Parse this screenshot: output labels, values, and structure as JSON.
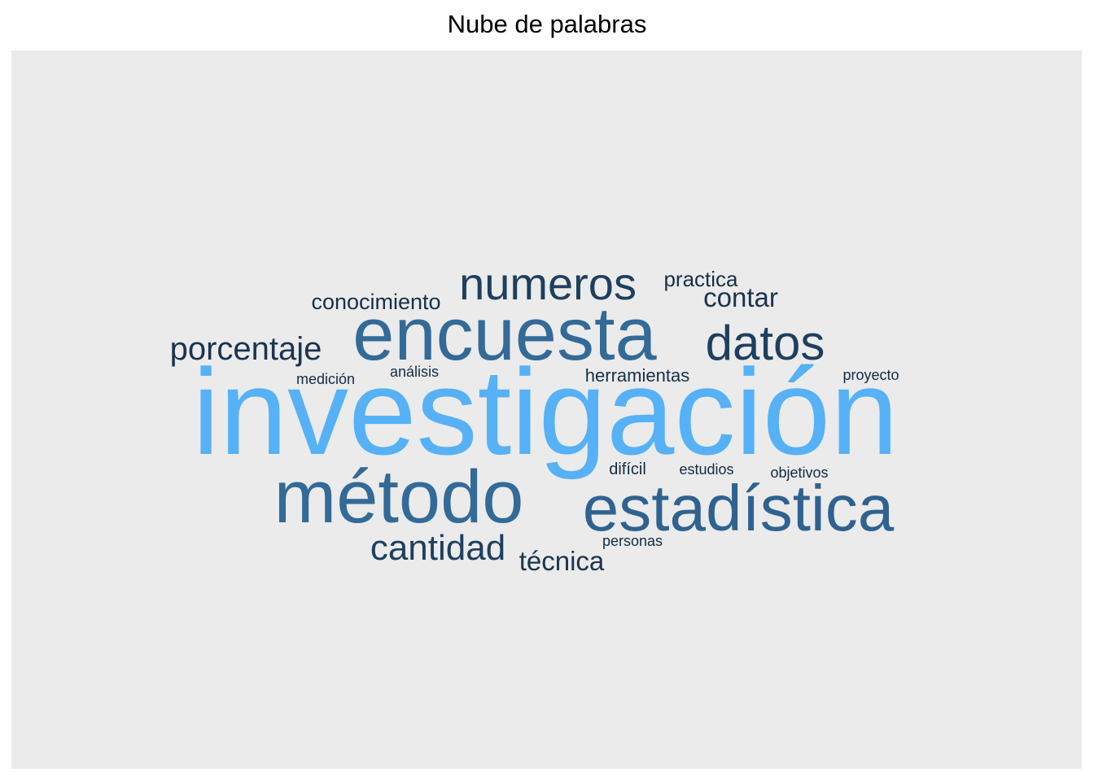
{
  "chart_data": {
    "type": "wordcloud",
    "title": "Nube de palabras",
    "words": [
      {
        "word": "investigación",
        "freq": 10,
        "color": "#56b1f7"
      },
      {
        "word": "encuesta",
        "freq": 6,
        "color": "#336a98"
      },
      {
        "word": "método",
        "freq": 6,
        "color": "#336a98"
      },
      {
        "word": "estadística",
        "freq": 5,
        "color": "#2f6290"
      },
      {
        "word": "numeros",
        "freq": 3,
        "color": "#1e3f5f"
      },
      {
        "word": "datos",
        "freq": 3,
        "color": "#1e3f5f"
      },
      {
        "word": "cantidad",
        "freq": 3,
        "color": "#1e3f5f"
      },
      {
        "word": "porcentaje",
        "freq": 2,
        "color": "#1a3450"
      },
      {
        "word": "contar",
        "freq": 2,
        "color": "#1a3450"
      },
      {
        "word": "técnica",
        "freq": 2,
        "color": "#1a3450"
      },
      {
        "word": "conocimiento",
        "freq": 1,
        "color": "#163049"
      },
      {
        "word": "practica",
        "freq": 1,
        "color": "#163049"
      },
      {
        "word": "herramientas",
        "freq": 1,
        "color": "#163049"
      },
      {
        "word": "medición",
        "freq": 1,
        "color": "#132b43"
      },
      {
        "word": "análisis",
        "freq": 1,
        "color": "#132b43"
      },
      {
        "word": "proyecto",
        "freq": 1,
        "color": "#132b43"
      },
      {
        "word": "difícil",
        "freq": 1,
        "color": "#132b43"
      },
      {
        "word": "estudios",
        "freq": 1,
        "color": "#132b43"
      },
      {
        "word": "objetivos",
        "freq": 1,
        "color": "#132b43"
      },
      {
        "word": "personas",
        "freq": 1,
        "color": "#132b43"
      }
    ]
  }
}
